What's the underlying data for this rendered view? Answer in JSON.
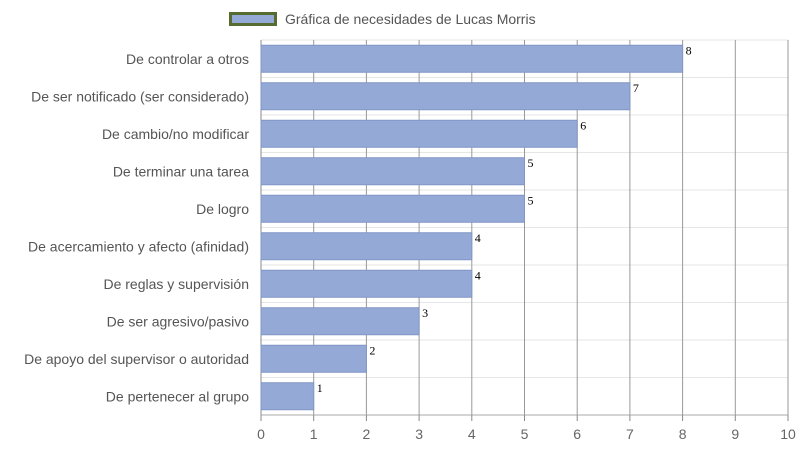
{
  "chart_data": {
    "type": "bar",
    "orientation": "horizontal",
    "legend": {
      "label": "Gráfica de necesidades de Lucas Morris",
      "position": "top"
    },
    "categories": [
      "De controlar a otros",
      "De ser notificado (ser considerado)",
      "De cambio/no modificar",
      "De terminar una tarea",
      "De logro",
      "De acercamiento y afecto (afinidad)",
      "De reglas y supervisión",
      "De ser agresivo/pasivo",
      "De apoyo del supervisor o autoridad",
      "De pertenecer al grupo"
    ],
    "series": [
      {
        "name": "Gráfica de necesidades de Lucas Morris",
        "values": [
          8,
          7,
          6,
          5,
          5,
          4,
          4,
          3,
          2,
          1
        ]
      }
    ],
    "data_labels": [
      "8",
      "7",
      "6",
      "5",
      "5",
      "4",
      "4",
      "3",
      "2",
      "1"
    ],
    "x_ticks": [
      "0",
      "1",
      "2",
      "3",
      "4",
      "5",
      "6",
      "7",
      "8",
      "9",
      "10"
    ],
    "xlim": [
      0,
      10
    ],
    "grid": true,
    "colors": {
      "bar": "#94a9d5",
      "bar_border": "#8096c6",
      "legend_border": "#556b2f",
      "grid": "#999999"
    }
  }
}
